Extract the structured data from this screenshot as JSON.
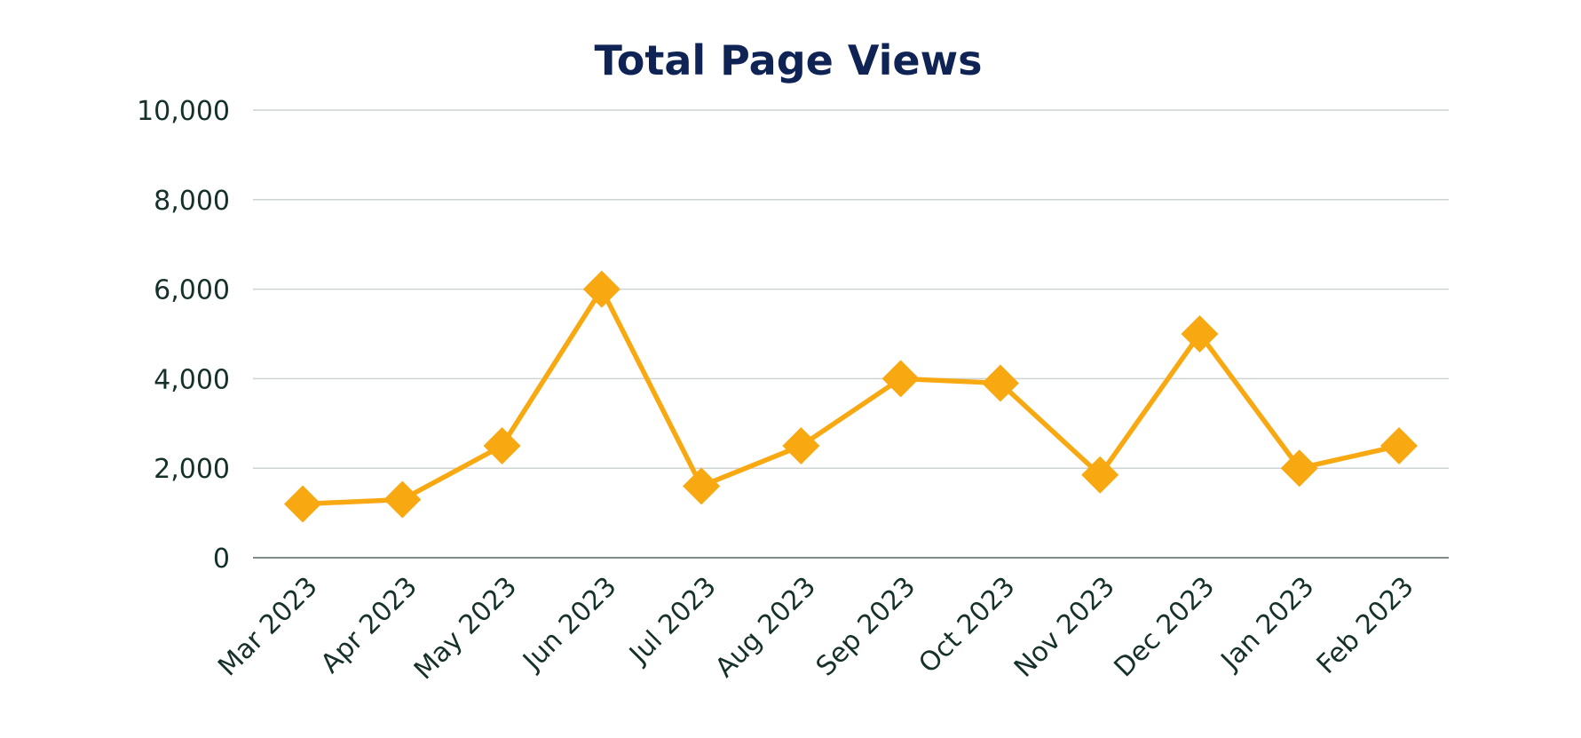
{
  "chart_data": {
    "type": "line",
    "title": "Total Page Views",
    "xlabel": "",
    "ylabel": "",
    "categories": [
      "Mar 2023",
      "Apr 2023",
      "May 2023",
      "Jun 2023",
      "Jul 2023",
      "Aug 2023",
      "Sep 2023",
      "Oct 2023",
      "Nov 2023",
      "Dec 2023",
      "Jan 2023",
      "Feb 2023"
    ],
    "series": [
      {
        "values": [
          1200,
          1300,
          2500,
          6000,
          1600,
          2500,
          4000,
          3900,
          1850,
          5000,
          2000,
          2500
        ],
        "color": "#f8a912",
        "marker": "diamond"
      }
    ],
    "ylim": [
      0,
      10000
    ],
    "yticks": [
      0,
      2000,
      4000,
      6000,
      8000,
      10000
    ],
    "ytick_labels": [
      "0",
      "2,000",
      "4,000",
      "6,000",
      "8,000",
      "10,000"
    ],
    "grid": true,
    "legend": "none"
  }
}
